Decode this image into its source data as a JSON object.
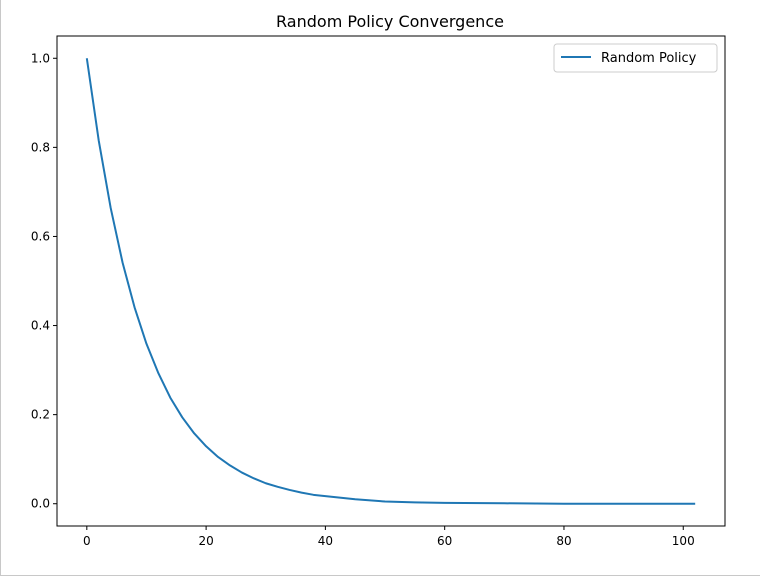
{
  "chart_data": {
    "type": "line",
    "title": "Random Policy Convergence",
    "xlabel": "",
    "ylabel": "",
    "xlim": [
      -5,
      107
    ],
    "ylim": [
      -0.05,
      1.05
    ],
    "xticks": [
      0,
      20,
      40,
      60,
      80,
      100
    ],
    "yticks": [
      0.0,
      0.2,
      0.4,
      0.6,
      0.8,
      1.0
    ],
    "xtick_labels": [
      "0",
      "20",
      "40",
      "60",
      "80",
      "100"
    ],
    "ytick_labels": [
      "0.0",
      "0.2",
      "0.4",
      "0.6",
      "0.8",
      "1.0"
    ],
    "grid": false,
    "legend_position": "top-right",
    "series": [
      {
        "name": "Random Policy",
        "color": "#1f77b4",
        "x": [
          0,
          2,
          4,
          6,
          8,
          10,
          12,
          14,
          16,
          18,
          20,
          22,
          24,
          26,
          28,
          30,
          32,
          34,
          36,
          38,
          40,
          45,
          50,
          55,
          60,
          70,
          80,
          90,
          102
        ],
        "y": [
          1.0,
          0.815,
          0.664,
          0.541,
          0.441,
          0.359,
          0.293,
          0.238,
          0.194,
          0.158,
          0.129,
          0.105,
          0.086,
          0.07,
          0.057,
          0.046,
          0.038,
          0.031,
          0.025,
          0.02,
          0.017,
          0.01,
          0.005,
          0.003,
          0.002,
          0.001,
          0.0,
          0.0,
          0.0
        ]
      }
    ]
  }
}
